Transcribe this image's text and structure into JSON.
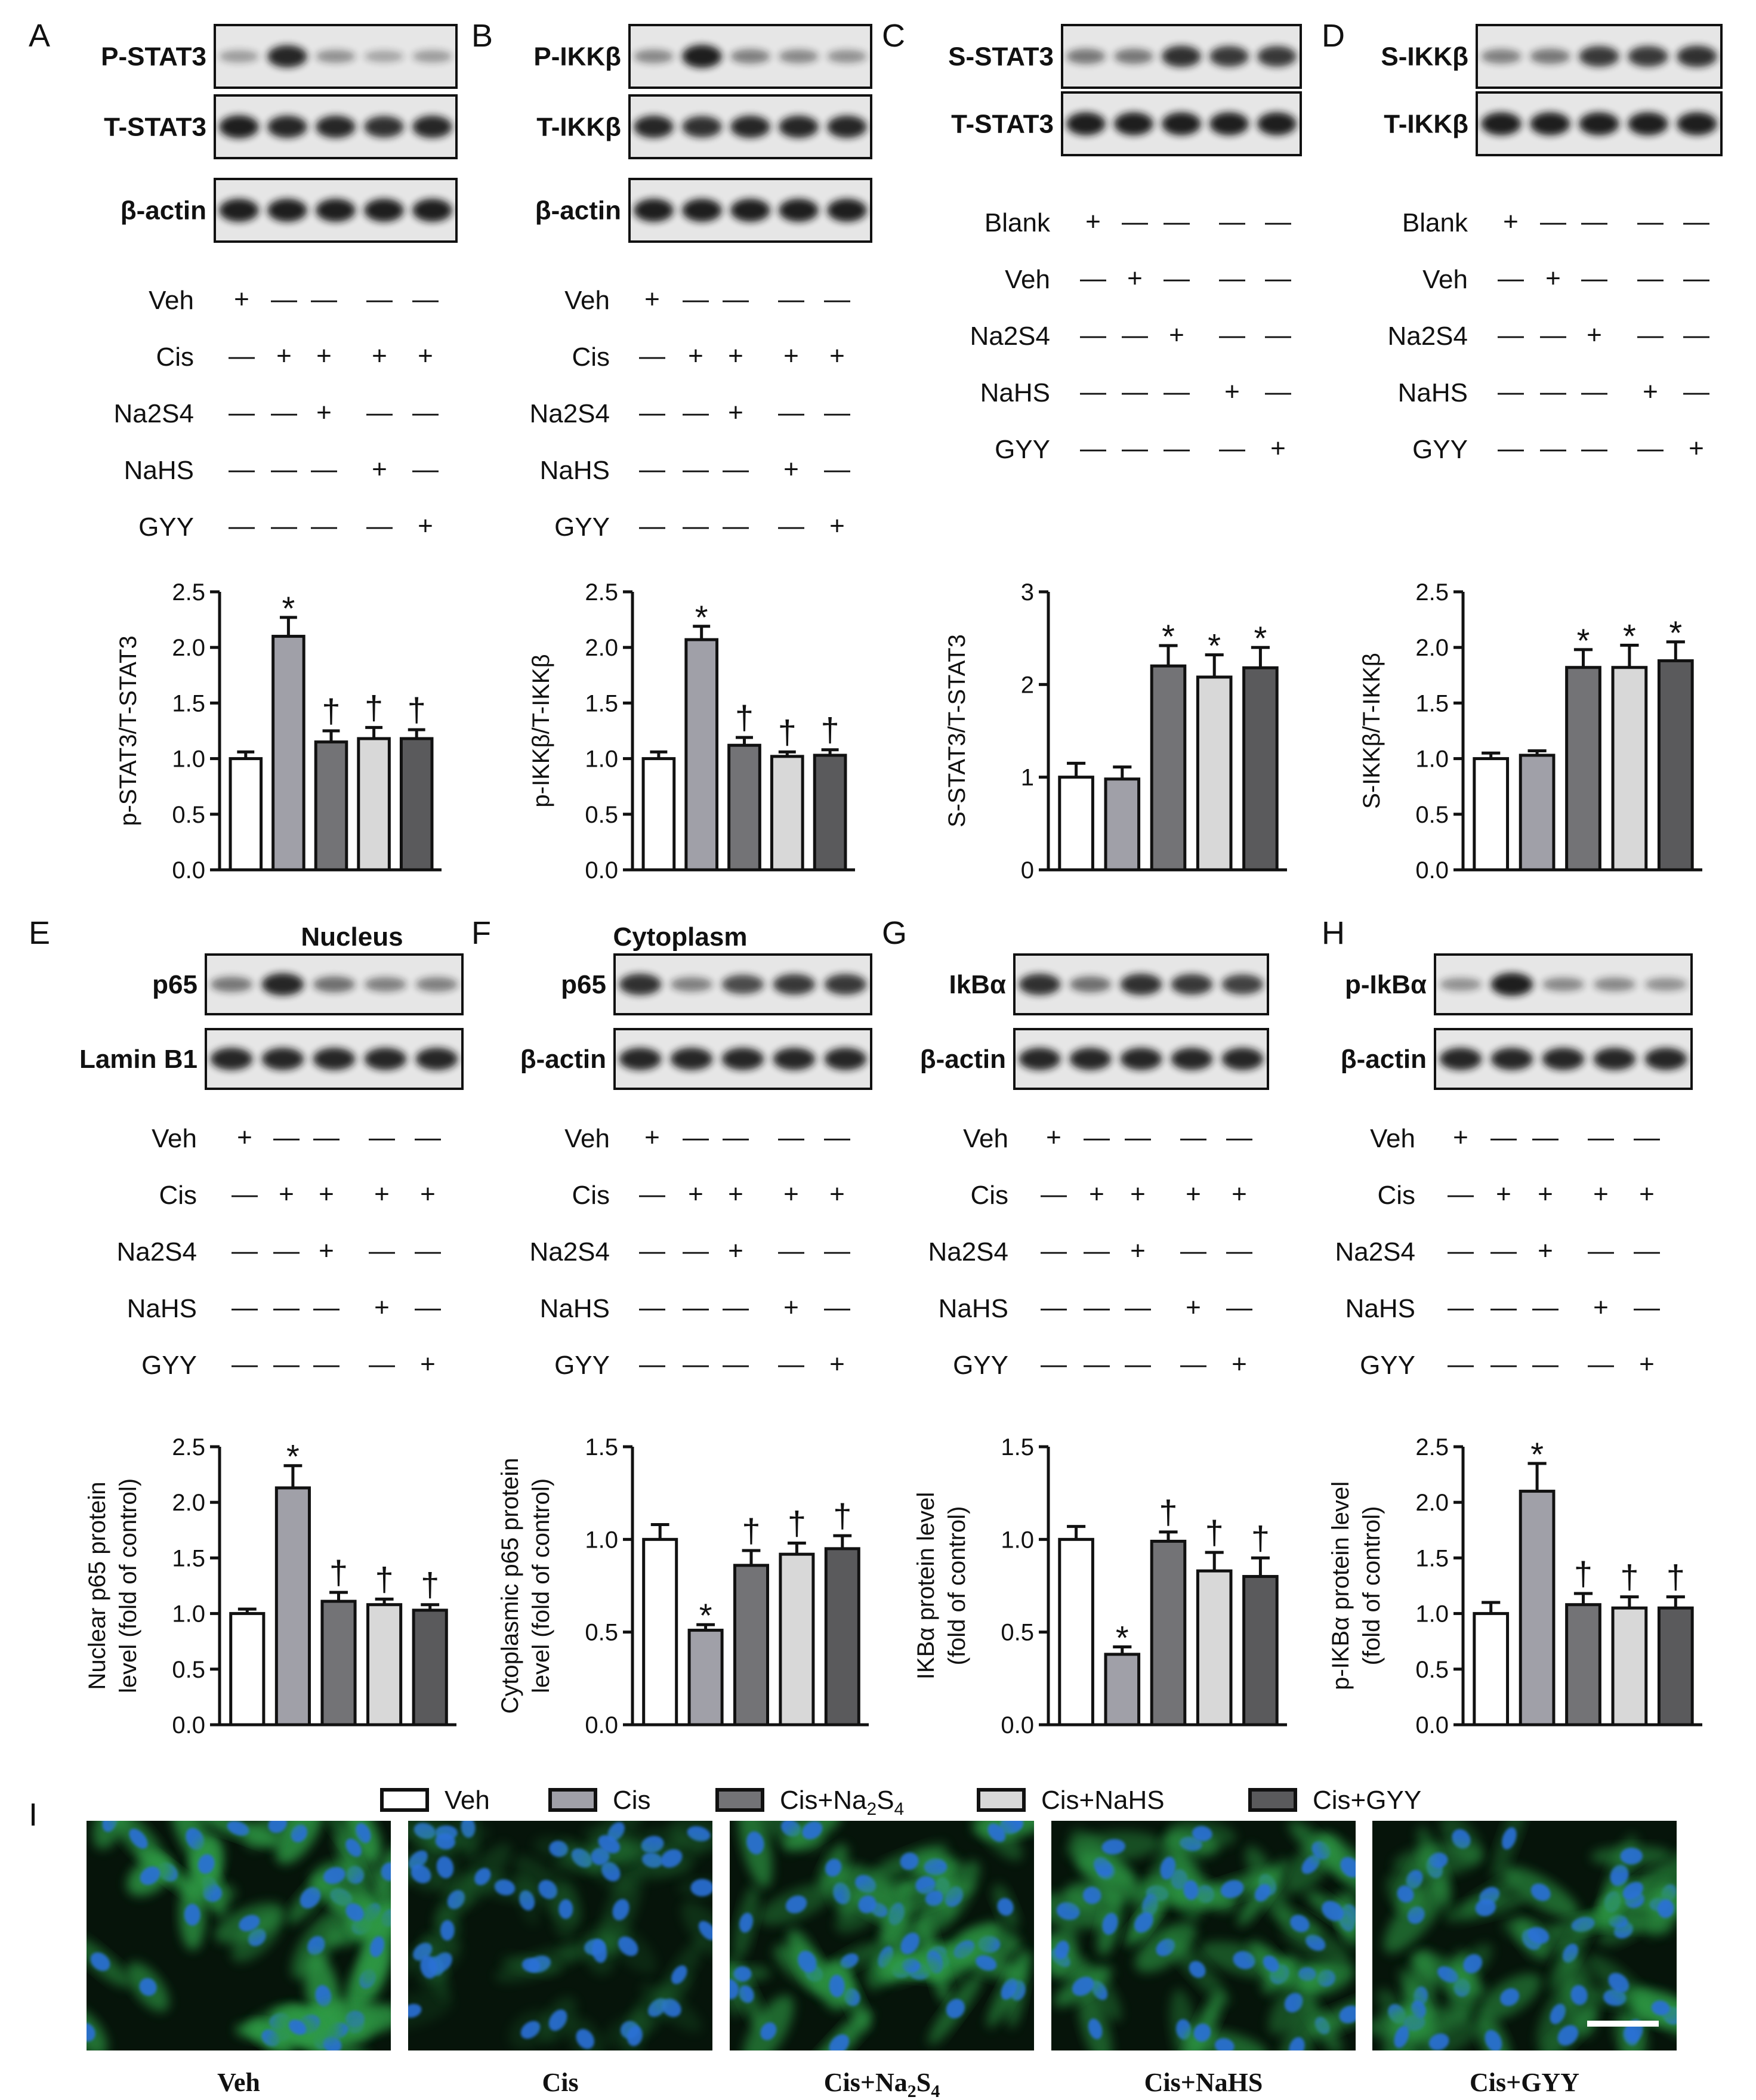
{
  "colors": {
    "Veh": "#ffffff",
    "Cis": "#a0a0a8",
    "Cis+Na2S4": "#737376",
    "Cis+NaHS": "#d8d8d8",
    "Cis+GYY": "#5a5a5c",
    "blot_background": "#e6e6e6",
    "band": "#151515",
    "micrograph_background": "#06140a",
    "cytoplasm": "#2f9a45",
    "nucleus": "#2a6fd8"
  },
  "panel_letters": [
    "A",
    "B",
    "C",
    "D",
    "E",
    "F",
    "G",
    "H",
    "I"
  ],
  "blots": [
    {
      "panel": "A",
      "header": "",
      "rows": [
        {
          "label": "P-STAT3",
          "intensity": [
            0.25,
            0.9,
            0.3,
            0.2,
            0.25
          ]
        },
        {
          "label": "T-STAT3",
          "intensity": [
            0.95,
            0.9,
            0.9,
            0.85,
            0.9
          ]
        },
        {
          "label": "β-actin",
          "intensity": [
            0.95,
            0.95,
            0.95,
            0.95,
            0.95
          ]
        }
      ]
    },
    {
      "panel": "B",
      "header": "",
      "rows": [
        {
          "label": "P-IKKβ",
          "intensity": [
            0.35,
            0.95,
            0.4,
            0.35,
            0.3
          ]
        },
        {
          "label": "T-IKKβ",
          "intensity": [
            0.9,
            0.85,
            0.9,
            0.9,
            0.9
          ]
        },
        {
          "label": "β-actin",
          "intensity": [
            0.95,
            0.95,
            0.95,
            0.95,
            0.95
          ]
        }
      ]
    },
    {
      "panel": "C",
      "header": "",
      "rows": [
        {
          "label": "S-STAT3",
          "intensity": [
            0.45,
            0.45,
            0.85,
            0.8,
            0.8
          ]
        },
        {
          "label": "T-STAT3",
          "intensity": [
            0.95,
            0.95,
            0.95,
            0.95,
            0.95
          ]
        }
      ]
    },
    {
      "panel": "D",
      "header": "",
      "rows": [
        {
          "label": "S-IKKβ",
          "intensity": [
            0.4,
            0.45,
            0.8,
            0.8,
            0.85
          ]
        },
        {
          "label": "T-IKKβ",
          "intensity": [
            0.95,
            0.95,
            0.95,
            0.95,
            0.95
          ]
        }
      ]
    },
    {
      "panel": "E",
      "header": "Nucleus",
      "rows": [
        {
          "label": "p65",
          "intensity": [
            0.45,
            0.9,
            0.5,
            0.4,
            0.4
          ]
        },
        {
          "label": "Lamin B1",
          "intensity": [
            0.9,
            0.9,
            0.9,
            0.9,
            0.9
          ]
        }
      ]
    },
    {
      "panel": "F",
      "header": "Cytoplasm",
      "rows": [
        {
          "label": "p65",
          "intensity": [
            0.85,
            0.4,
            0.7,
            0.8,
            0.8
          ]
        },
        {
          "label": "β-actin",
          "intensity": [
            0.9,
            0.9,
            0.9,
            0.9,
            0.9
          ]
        }
      ]
    },
    {
      "panel": "G",
      "header": "",
      "rows": [
        {
          "label": "IkBα",
          "intensity": [
            0.85,
            0.5,
            0.85,
            0.8,
            0.75
          ]
        },
        {
          "label": "β-actin",
          "intensity": [
            0.9,
            0.9,
            0.9,
            0.9,
            0.9
          ]
        }
      ]
    },
    {
      "panel": "H",
      "header": "",
      "rows": [
        {
          "label": "p-IkBα",
          "intensity": [
            0.3,
            0.95,
            0.35,
            0.35,
            0.3
          ]
        },
        {
          "label": "β-actin",
          "intensity": [
            0.9,
            0.9,
            0.9,
            0.9,
            0.9
          ]
        }
      ]
    }
  ],
  "treatments": {
    "cis_design": [
      {
        "label": "Veh",
        "signs": [
          "+",
          "—",
          "—",
          "—",
          "—"
        ]
      },
      {
        "label": "Cis",
        "signs": [
          "—",
          "+",
          "+",
          "+",
          "+"
        ]
      },
      {
        "label": "Na2S4",
        "signs": [
          "—",
          "—",
          "+",
          "—",
          "—"
        ]
      },
      {
        "label": "NaHS",
        "signs": [
          "—",
          "—",
          "—",
          "+",
          "—"
        ]
      },
      {
        "label": "GYY",
        "signs": [
          "—",
          "—",
          "—",
          "—",
          "+"
        ]
      }
    ],
    "blank_design": [
      {
        "label": "Blank",
        "signs": [
          "+",
          "—",
          "—",
          "—",
          "—"
        ]
      },
      {
        "label": "Veh",
        "signs": [
          "—",
          "+",
          "—",
          "—",
          "—"
        ]
      },
      {
        "label": "Na2S4",
        "signs": [
          "—",
          "—",
          "+",
          "—",
          "—"
        ]
      },
      {
        "label": "NaHS",
        "signs": [
          "—",
          "—",
          "—",
          "+",
          "—"
        ]
      },
      {
        "label": "GYY",
        "signs": [
          "—",
          "—",
          "—",
          "—",
          "+"
        ]
      }
    ]
  },
  "legend": {
    "entries": [
      {
        "key": "Veh",
        "text": "Veh",
        "sub": ""
      },
      {
        "key": "Cis",
        "text": "Cis",
        "sub": ""
      },
      {
        "key": "Cis+Na2S4",
        "text": "Cis+Na",
        "sub": "2",
        "text2": "S",
        "sub2": "4"
      },
      {
        "key": "Cis+NaHS",
        "text": "Cis+NaHS",
        "sub": ""
      },
      {
        "key": "Cis+GYY",
        "text": "Cis+GYY",
        "sub": ""
      }
    ]
  },
  "chart_data": [
    {
      "panel": "A",
      "type": "bar",
      "title": "",
      "xlabel": "",
      "ylabel": [
        "p-STAT3/T-STAT3"
      ],
      "categories": [
        "Veh",
        "Cis",
        "Cis+Na2S4",
        "Cis+NaHS",
        "Cis+GYY"
      ],
      "values": [
        1.0,
        2.1,
        1.15,
        1.18,
        1.18
      ],
      "errors": [
        0.06,
        0.17,
        0.1,
        0.1,
        0.08
      ],
      "marks": [
        "",
        "*",
        "†",
        "†",
        "†"
      ],
      "ylim": [
        0,
        2.5
      ],
      "yticks": [
        "0.0",
        "0.5",
        "1.0",
        "1.5",
        "2.0",
        "2.5"
      ]
    },
    {
      "panel": "B",
      "type": "bar",
      "title": "",
      "xlabel": "",
      "ylabel": [
        "p-IKKβ/T-IKKβ"
      ],
      "categories": [
        "Veh",
        "Cis",
        "Cis+Na2S4",
        "Cis+NaHS",
        "Cis+GYY"
      ],
      "values": [
        1.0,
        2.07,
        1.12,
        1.02,
        1.03
      ],
      "errors": [
        0.06,
        0.12,
        0.07,
        0.04,
        0.05
      ],
      "marks": [
        "",
        "*",
        "†",
        "†",
        "†"
      ],
      "ylim": [
        0,
        2.5
      ],
      "yticks": [
        "0.0",
        "0.5",
        "1.0",
        "1.5",
        "2.0",
        "2.5"
      ]
    },
    {
      "panel": "C",
      "type": "bar",
      "title": "",
      "xlabel": "",
      "ylabel": [
        "S-STAT3/T-STAT3"
      ],
      "categories": [
        "Blank",
        "Veh",
        "Na2S4",
        "NaHS",
        "GYY"
      ],
      "values": [
        1.0,
        0.98,
        2.2,
        2.08,
        2.18
      ],
      "errors": [
        0.15,
        0.13,
        0.22,
        0.24,
        0.22
      ],
      "marks": [
        "",
        "",
        "*",
        "*",
        "*"
      ],
      "ylim": [
        0,
        3
      ],
      "yticks": [
        "0",
        "1",
        "2",
        "3"
      ]
    },
    {
      "panel": "D",
      "type": "bar",
      "title": "",
      "xlabel": "",
      "ylabel": [
        "S-IKKβ/T-IKKβ"
      ],
      "categories": [
        "Blank",
        "Veh",
        "Na2S4",
        "NaHS",
        "GYY"
      ],
      "values": [
        1.0,
        1.03,
        1.82,
        1.82,
        1.88
      ],
      "errors": [
        0.05,
        0.04,
        0.16,
        0.2,
        0.17
      ],
      "marks": [
        "",
        "",
        "*",
        "*",
        "*"
      ],
      "ylim": [
        0,
        2.5
      ],
      "yticks": [
        "0.0",
        "0.5",
        "1.0",
        "1.5",
        "2.0",
        "2.5"
      ]
    },
    {
      "panel": "E",
      "type": "bar",
      "title": "",
      "xlabel": "",
      "ylabel": [
        "Nuclear p65 protein",
        "level (fold of control)"
      ],
      "categories": [
        "Veh",
        "Cis",
        "Cis+Na2S4",
        "Cis+NaHS",
        "Cis+GYY"
      ],
      "values": [
        1.0,
        2.13,
        1.11,
        1.08,
        1.03
      ],
      "errors": [
        0.04,
        0.2,
        0.08,
        0.05,
        0.05
      ],
      "marks": [
        "",
        "*",
        "†",
        "†",
        "†"
      ],
      "ylim": [
        0,
        2.5
      ],
      "yticks": [
        "0.0",
        "0.5",
        "1.0",
        "1.5",
        "2.0",
        "2.5"
      ]
    },
    {
      "panel": "F",
      "type": "bar",
      "title": "",
      "xlabel": "",
      "ylabel": [
        "Cytoplasmic p65 protein",
        "level (fold of control)"
      ],
      "categories": [
        "Veh",
        "Cis",
        "Cis+Na2S4",
        "Cis+NaHS",
        "Cis+GYY"
      ],
      "values": [
        1.0,
        0.51,
        0.86,
        0.92,
        0.95
      ],
      "errors": [
        0.08,
        0.03,
        0.08,
        0.06,
        0.07
      ],
      "marks": [
        "",
        "*",
        "†",
        "†",
        "†"
      ],
      "ylim": [
        0,
        1.5
      ],
      "yticks": [
        "0.0",
        "0.5",
        "1.0",
        "1.5"
      ]
    },
    {
      "panel": "G",
      "type": "bar",
      "title": "",
      "xlabel": "",
      "ylabel": [
        "IKBα protein level",
        "(fold of control)"
      ],
      "categories": [
        "Veh",
        "Cis",
        "Cis+Na2S4",
        "Cis+NaHS",
        "Cis+GYY"
      ],
      "values": [
        1.0,
        0.38,
        0.99,
        0.83,
        0.8
      ],
      "errors": [
        0.07,
        0.04,
        0.05,
        0.1,
        0.1
      ],
      "marks": [
        "",
        "*",
        "†",
        "†",
        "†"
      ],
      "ylim": [
        0,
        1.5
      ],
      "yticks": [
        "0.0",
        "0.5",
        "1.0",
        "1.5"
      ]
    },
    {
      "panel": "H",
      "type": "bar",
      "title": "",
      "xlabel": "",
      "ylabel": [
        "p-IKBα protein level",
        "(fold of control)"
      ],
      "categories": [
        "Veh",
        "Cis",
        "Cis+Na2S4",
        "Cis+NaHS",
        "Cis+GYY"
      ],
      "values": [
        1.0,
        2.1,
        1.08,
        1.05,
        1.05
      ],
      "errors": [
        0.1,
        0.25,
        0.1,
        0.1,
        0.1
      ],
      "marks": [
        "",
        "*",
        "†",
        "†",
        "†"
      ],
      "ylim": [
        0,
        2.5
      ],
      "yticks": [
        "0.0",
        "0.5",
        "1.0",
        "1.5",
        "2.0",
        "2.5"
      ]
    }
  ],
  "micrographs": [
    {
      "caption": "Veh",
      "caption_sub": "",
      "green_level": 0.9,
      "scale_bar": false
    },
    {
      "caption": "Cis",
      "caption_sub": "",
      "green_level": 0.25,
      "scale_bar": false
    },
    {
      "caption": "Cis+Na",
      "caption_sub": "2",
      "caption2": "S",
      "caption_sub2": "4",
      "green_level": 0.75,
      "scale_bar": false
    },
    {
      "caption": "Cis+NaHS",
      "caption_sub": "",
      "green_level": 0.75,
      "scale_bar": false
    },
    {
      "caption": "Cis+GYY",
      "caption_sub": "",
      "green_level": 0.65,
      "scale_bar": true
    }
  ]
}
